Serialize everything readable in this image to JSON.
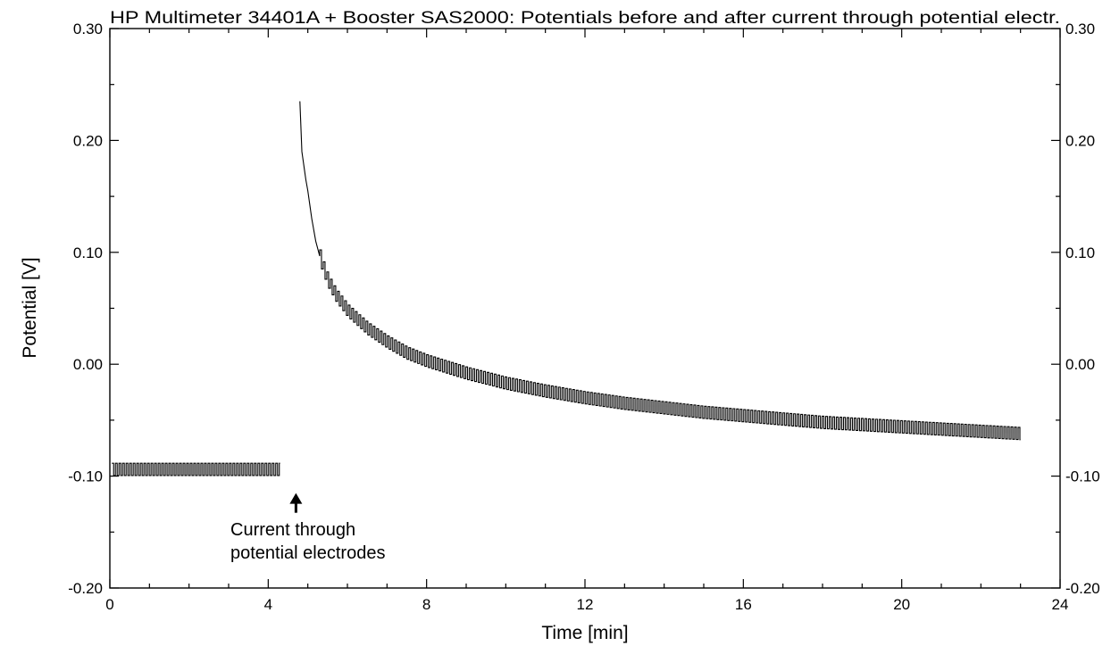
{
  "chart_data": {
    "type": "line",
    "title": "HP Multimeter 34401A + Booster SAS2000: Potentials before and after current through potential electr.",
    "xlabel": "Time [min]",
    "ylabel": "Potential [V]",
    "xlim": [
      0,
      24
    ],
    "ylim": [
      -0.2,
      0.3
    ],
    "x_ticks": [
      0,
      4,
      8,
      12,
      16,
      20,
      24
    ],
    "y_ticks": [
      -0.2,
      -0.1,
      0.0,
      0.1,
      0.2,
      0.3
    ],
    "x_tick_labels": [
      "0",
      "4",
      "8",
      "12",
      "16",
      "20",
      "24"
    ],
    "y_tick_labels": [
      "-0.20",
      "-0.10",
      "0.00",
      "0.10",
      "0.20",
      "0.30"
    ],
    "y_tick_labels_right": [
      "-0.20",
      "-0.10",
      "0.00",
      "0.10",
      "0.20",
      "0.30"
    ],
    "grid": false,
    "series": [
      {
        "segment": "before",
        "x_start": 0.05,
        "x_end": 4.3,
        "y_mean": -0.094,
        "oscillation_amplitude": 0.0055,
        "oscillation_period": 0.09,
        "points": [
          [
            0.05,
            -0.094
          ],
          [
            4.3,
            -0.094
          ]
        ]
      },
      {
        "segment": "after",
        "x_start": 4.8,
        "x_end": 23.0,
        "oscillation_amplitude": 0.0055,
        "oscillation_period": 0.09,
        "oscillation_start": 5.3,
        "points": [
          [
            4.8,
            0.235
          ],
          [
            4.85,
            0.19
          ],
          [
            4.95,
            0.165
          ],
          [
            5.0,
            0.155
          ],
          [
            5.1,
            0.13
          ],
          [
            5.2,
            0.11
          ],
          [
            5.35,
            0.09
          ],
          [
            5.5,
            0.075
          ],
          [
            5.7,
            0.062
          ],
          [
            6.0,
            0.048
          ],
          [
            6.5,
            0.032
          ],
          [
            7.0,
            0.02
          ],
          [
            7.5,
            0.01
          ],
          [
            8.0,
            0.003
          ],
          [
            9.0,
            -0.008
          ],
          [
            10.0,
            -0.017
          ],
          [
            11.0,
            -0.024
          ],
          [
            12.0,
            -0.03
          ],
          [
            13.0,
            -0.035
          ],
          [
            14.0,
            -0.039
          ],
          [
            15.0,
            -0.043
          ],
          [
            16.0,
            -0.046
          ],
          [
            17.0,
            -0.049
          ],
          [
            18.0,
            -0.052
          ],
          [
            19.0,
            -0.054
          ],
          [
            20.0,
            -0.056
          ],
          [
            21.0,
            -0.058
          ],
          [
            22.0,
            -0.06
          ],
          [
            23.0,
            -0.062
          ]
        ]
      }
    ],
    "annotations": [
      {
        "text_lines": [
          "Current through",
          "potential electrodes"
        ],
        "arrow_x": 4.7,
        "arrow_y": -0.12
      }
    ]
  }
}
